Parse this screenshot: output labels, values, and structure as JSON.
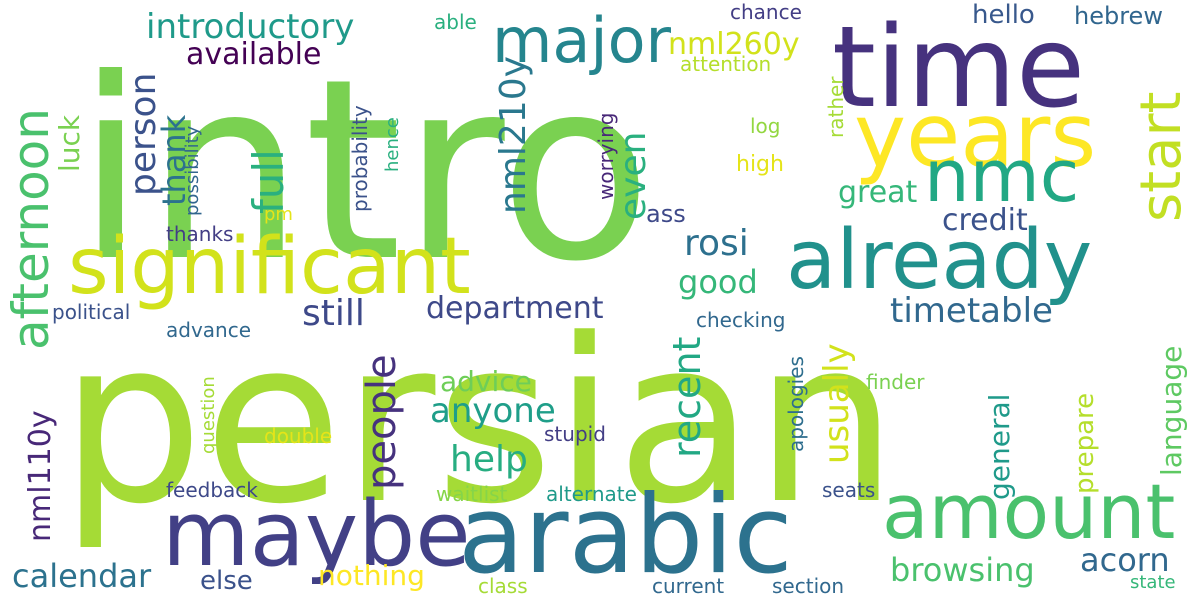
{
  "colors": {
    "background": "#ffffff",
    "palette_name": "viridis"
  },
  "words": [
    {
      "text": "intro",
      "color": "#7ad151"
    },
    {
      "text": "persian",
      "color": "#a5db36"
    },
    {
      "text": "time",
      "color": "#46327e"
    },
    {
      "text": "years",
      "color": "#fde725"
    },
    {
      "text": "significant",
      "color": "#d2e21b"
    },
    {
      "text": "already",
      "color": "#21918c"
    },
    {
      "text": "arabic",
      "color": "#2c728e"
    },
    {
      "text": "maybe",
      "color": "#424086"
    },
    {
      "text": "amount",
      "color": "#4ac16d"
    },
    {
      "text": "nmc",
      "color": "#22a884"
    },
    {
      "text": "major",
      "color": "#25858e"
    },
    {
      "text": "afternoon",
      "color": "#4ac16d"
    },
    {
      "text": "introductory",
      "color": "#1f9a8a"
    },
    {
      "text": "available",
      "color": "#440154"
    },
    {
      "text": "nml260y",
      "color": "#d2e21b"
    },
    {
      "text": "hello",
      "color": "#38588c"
    },
    {
      "text": "hebrew",
      "color": "#31668e"
    },
    {
      "text": "start",
      "color": "#c2df23"
    },
    {
      "text": "nml210y",
      "color": "#2a788e"
    },
    {
      "text": "even",
      "color": "#2ab07f"
    },
    {
      "text": "full",
      "color": "#2ab07f"
    },
    {
      "text": "person",
      "color": "#3b528b"
    },
    {
      "text": "thank",
      "color": "#2c728e"
    },
    {
      "text": "luck",
      "color": "#7ad151"
    },
    {
      "text": "rosi",
      "color": "#2d708e"
    },
    {
      "text": "still",
      "color": "#3e4989"
    },
    {
      "text": "department",
      "color": "#3e4989"
    },
    {
      "text": "timetable",
      "color": "#31688e"
    },
    {
      "text": "credit",
      "color": "#3b528b"
    },
    {
      "text": "great",
      "color": "#35b779"
    },
    {
      "text": "good",
      "color": "#35b779"
    },
    {
      "text": "ass",
      "color": "#3e4989"
    },
    {
      "text": "people",
      "color": "#46327e"
    },
    {
      "text": "anyone",
      "color": "#1f9e89"
    },
    {
      "text": "advice",
      "color": "#6ece58"
    },
    {
      "text": "help",
      "color": "#27ad81"
    },
    {
      "text": "recent",
      "color": "#22a884"
    },
    {
      "text": "usually",
      "color": "#d2e21b"
    },
    {
      "text": "nml110y",
      "color": "#482878"
    },
    {
      "text": "calendar",
      "color": "#2c728e"
    },
    {
      "text": "else",
      "color": "#3b528b"
    },
    {
      "text": "nothing",
      "color": "#fde725"
    },
    {
      "text": "browsing",
      "color": "#4ac16d"
    },
    {
      "text": "acorn",
      "color": "#31688e"
    },
    {
      "text": "language",
      "color": "#5ec962"
    },
    {
      "text": "prepare",
      "color": "#b5de2b"
    },
    {
      "text": "general",
      "color": "#1f9a8a"
    },
    {
      "text": "waitlist",
      "color": "#86d549"
    },
    {
      "text": "alternate",
      "color": "#1f9a8a"
    },
    {
      "text": "stupid",
      "color": "#433e85"
    },
    {
      "text": "double",
      "color": "#e5e419"
    },
    {
      "text": "question",
      "color": "#a5db36"
    },
    {
      "text": "feedback",
      "color": "#3e4989"
    },
    {
      "text": "advance",
      "color": "#31688e"
    },
    {
      "text": "political",
      "color": "#3b528b"
    },
    {
      "text": "thanks",
      "color": "#433e85"
    },
    {
      "text": "pm",
      "color": "#e5e419"
    },
    {
      "text": "possibility",
      "color": "#31668e"
    },
    {
      "text": "probability",
      "color": "#3b528b"
    },
    {
      "text": "hence",
      "color": "#2ab07f"
    },
    {
      "text": "worrying",
      "color": "#482878"
    },
    {
      "text": "able",
      "color": "#2ab07f"
    },
    {
      "text": "chance",
      "color": "#433e85"
    },
    {
      "text": "attention",
      "color": "#b5de2b"
    },
    {
      "text": "log",
      "color": "#93d741"
    },
    {
      "text": "high",
      "color": "#e5e419"
    },
    {
      "text": "rather",
      "color": "#a5db36"
    },
    {
      "text": "checking",
      "color": "#31688e"
    },
    {
      "text": "apologies",
      "color": "#2e6e8e"
    },
    {
      "text": "finder",
      "color": "#7ad151"
    },
    {
      "text": "seats",
      "color": "#3b528b"
    },
    {
      "text": "class",
      "color": "#a5db36"
    },
    {
      "text": "current",
      "color": "#31688e"
    },
    {
      "text": "section",
      "color": "#31688e"
    },
    {
      "text": "state",
      "color": "#35b779"
    }
  ]
}
